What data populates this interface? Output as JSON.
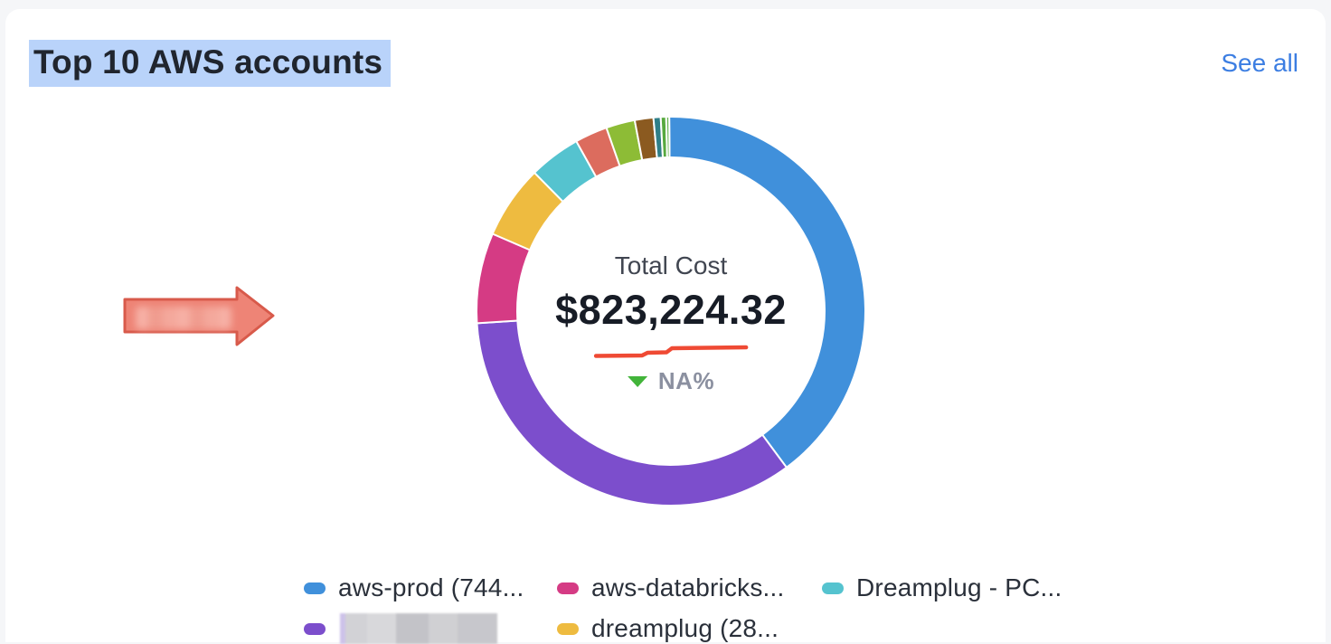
{
  "page": {
    "background": "#F5F6F8",
    "card_background": "#FFFFFF"
  },
  "header": {
    "title": "Top 10 AWS accounts",
    "title_selection_color": "#B9D3FA",
    "see_all": "See all",
    "link_color": "#3C7EE2"
  },
  "annotation_arrow": {
    "fill": "#EE8476",
    "border": "#D85A4B",
    "contains_redacted_text": true
  },
  "chart_data": {
    "type": "pie",
    "title": "Top 10 AWS accounts",
    "legend_position": "bottom",
    "center": {
      "label": "Total Cost",
      "value": "$823,224.32",
      "delta": "NA%",
      "delta_direction": "down",
      "delta_text_color": "#8B90A0",
      "delta_arrow_color": "#42B43A",
      "sparkline_color": "#EF4A34",
      "sparkline_points": [
        [
          2,
          13.5
        ],
        [
          53,
          13
        ],
        [
          59,
          10
        ],
        [
          80,
          9.5
        ],
        [
          86,
          5
        ],
        [
          168,
          4
        ]
      ]
    },
    "donut": {
      "start_angle_deg": -0.5,
      "outer_radius": 215,
      "inner_radius": 170,
      "segments": [
        {
          "label": "aws-prod (744...",
          "color": "#4090DB",
          "percent": 40.0
        },
        {
          "label": "",
          "redacted": true,
          "color": "#7C4ECC",
          "percent": 34.15
        },
        {
          "label": "aws-databricks...",
          "color": "#D53B84",
          "percent": 7.5
        },
        {
          "label": "dreamplug (28...",
          "color": "#EEBB40",
          "percent": 6.1
        },
        {
          "label": "Dreamplug - PC...",
          "color": "#55C3CF",
          "percent": 4.3
        },
        {
          "label": "",
          "color": "#DC6C5E",
          "percent": 2.7
        },
        {
          "label": "",
          "color": "#8DBC36",
          "percent": 2.4
        },
        {
          "label": "",
          "color": "#8B5A20",
          "percent": 1.55
        },
        {
          "label": "",
          "color": "#2F7F88",
          "percent": 0.6
        },
        {
          "label": "",
          "color": "#57A93F",
          "percent": 0.45
        },
        {
          "label": "",
          "color": "#67B650",
          "percent": 0.25
        }
      ]
    }
  },
  "legend": {
    "items": [
      {
        "label": "aws-prod (744...",
        "color": "#4090DB",
        "redacted": false
      },
      {
        "label": "aws-databricks...",
        "color": "#D53B84",
        "redacted": false
      },
      {
        "label": "Dreamplug - PC...",
        "color": "#55C3CF",
        "redacted": false
      },
      {
        "label": "",
        "color": "#7C4ECC",
        "redacted": true
      },
      {
        "label": "dreamplug (28...",
        "color": "#EEBB40",
        "redacted": false
      }
    ]
  }
}
